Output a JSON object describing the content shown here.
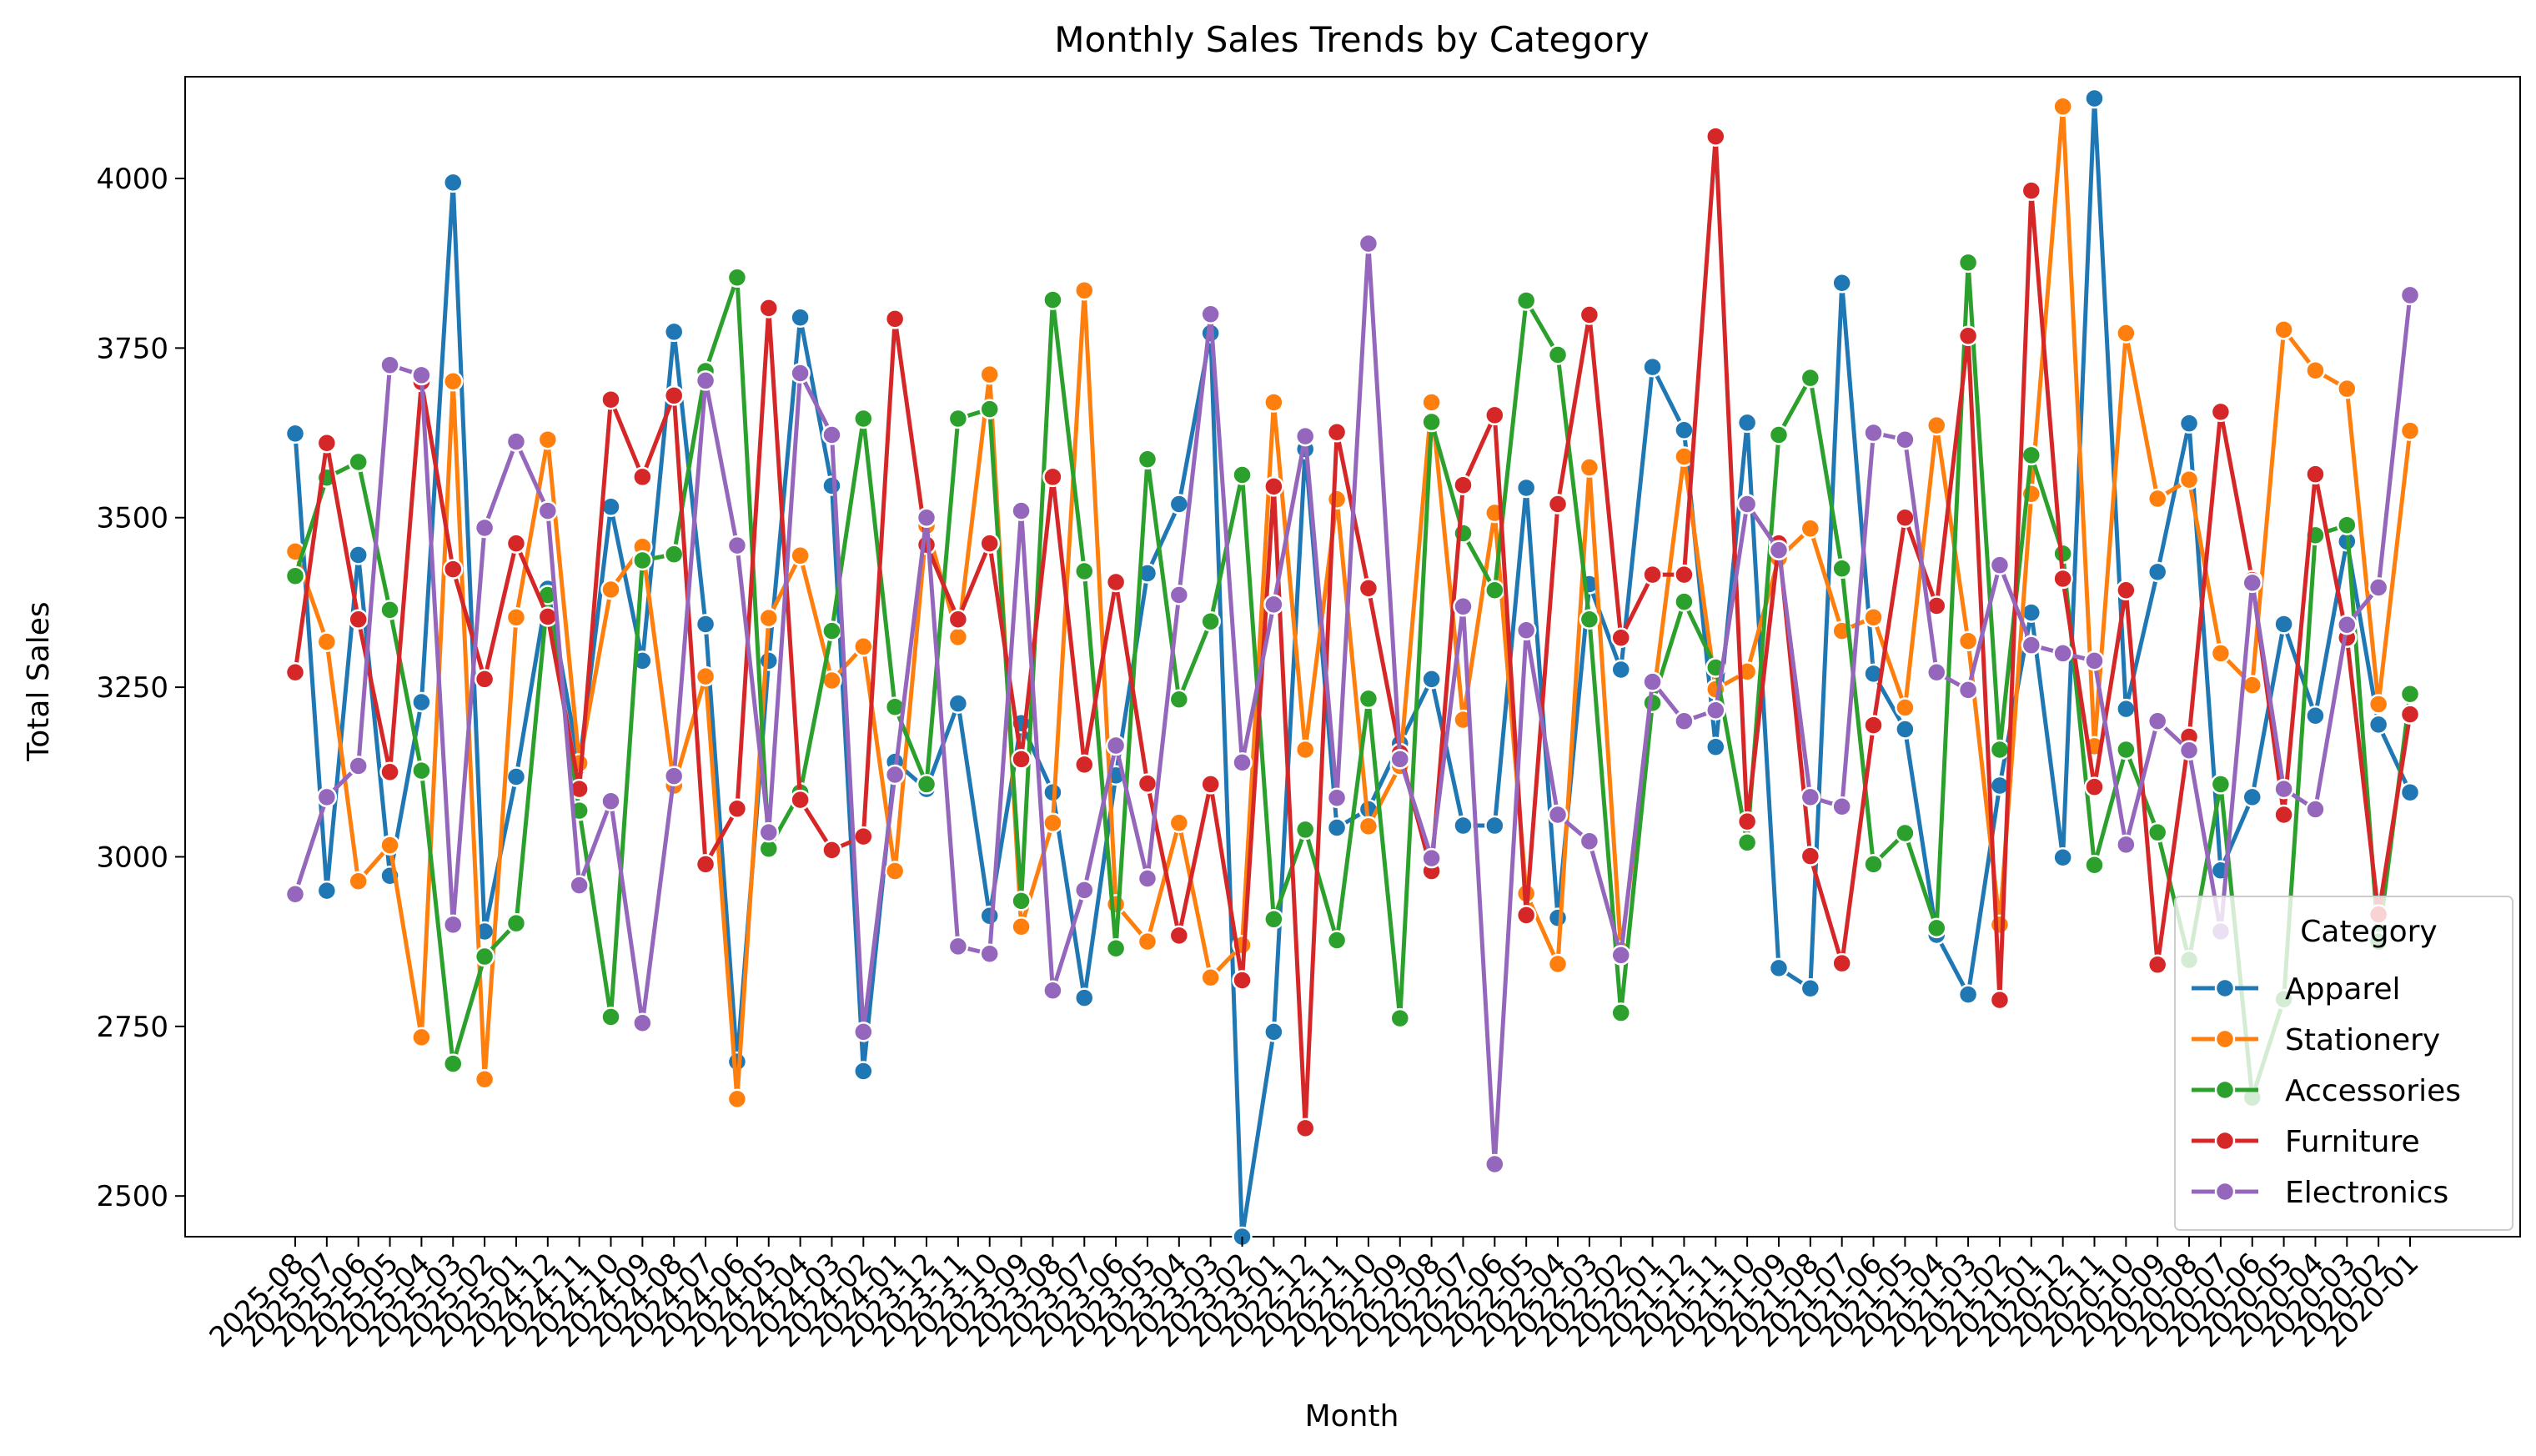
{
  "chart_data": {
    "type": "line",
    "title": "Monthly Sales Trends by Category",
    "xlabel": "Month",
    "ylabel": "Total Sales",
    "ylim": [
      2440,
      4150
    ],
    "yticks": [
      2500,
      2750,
      3000,
      3250,
      3500,
      3750,
      4000
    ],
    "grid": false,
    "legend": {
      "title": "Category",
      "position": "lower-right"
    },
    "categories": [
      "2025-08",
      "2025-07",
      "2025-06",
      "2025-05",
      "2025-04",
      "2025-03",
      "2025-02",
      "2025-01",
      "2024-12",
      "2024-11",
      "2024-10",
      "2024-09",
      "2024-08",
      "2024-07",
      "2024-06",
      "2024-05",
      "2024-04",
      "2024-03",
      "2024-02",
      "2024-01",
      "2023-12",
      "2023-11",
      "2023-10",
      "2023-09",
      "2023-08",
      "2023-07",
      "2023-06",
      "2023-05",
      "2023-04",
      "2023-03",
      "2023-02",
      "2023-01",
      "2022-12",
      "2022-11",
      "2022-10",
      "2022-09",
      "2022-08",
      "2022-07",
      "2022-06",
      "2022-05",
      "2022-04",
      "2022-03",
      "2022-02",
      "2022-01",
      "2021-12",
      "2021-11",
      "2021-10",
      "2021-09",
      "2021-08",
      "2021-07",
      "2021-06",
      "2021-05",
      "2021-04",
      "2021-03",
      "2021-02",
      "2021-01",
      "2020-12",
      "2020-11",
      "2020-10",
      "2020-09",
      "2020-08",
      "2020-07",
      "2020-06",
      "2020-05",
      "2020-04",
      "2020-03",
      "2020-02",
      "2020-01"
    ],
    "series": [
      {
        "name": "Apparel",
        "color": "#1f77b4",
        "values": [
          3624,
          2950,
          3445,
          2972,
          3228,
          3994,
          2890,
          3118,
          3395,
          3134,
          3516,
          3289,
          3774,
          3343,
          2698,
          3289,
          3795,
          3547,
          2684,
          3140,
          3100,
          3226,
          2913,
          3197,
          3095,
          2792,
          3120,
          3418,
          3520,
          3772,
          2440,
          2742,
          3601,
          3043,
          3070,
          3167,
          3262,
          3046,
          3046,
          3544,
          2910,
          3402,
          3276,
          3722,
          3629,
          3162,
          3640,
          2836,
          2806,
          3846,
          3270,
          3188,
          2885,
          2797,
          3105,
          3360,
          2999,
          4118,
          3218,
          3420,
          3639,
          2980,
          3088,
          3343,
          3208,
          3465,
          3195,
          3095
        ]
      },
      {
        "name": "Stationery",
        "color": "#ff7f0e",
        "values": [
          3450,
          3317,
          2964,
          3017,
          2734,
          3701,
          2672,
          3353,
          3615,
          3138,
          3394,
          3457,
          3105,
          3266,
          2643,
          3352,
          3444,
          3260,
          3310,
          2979,
          3488,
          3324,
          3711,
          2897,
          3050,
          3835,
          2930,
          2875,
          3050,
          2822,
          2870,
          3670,
          3158,
          3527,
          3045,
          3134,
          3670,
          3202,
          3507,
          2946,
          2842,
          3574,
          2862,
          3225,
          3590,
          3247,
          3273,
          3440,
          3484,
          3333,
          3353,
          3220,
          3636,
          3318,
          2900,
          3535,
          4106,
          3163,
          3772,
          3528,
          3556,
          3300,
          3253,
          3777,
          3717,
          3690,
          3225,
          3628
        ]
      },
      {
        "name": "Accessories",
        "color": "#2ca02c",
        "values": [
          3414,
          3559,
          3582,
          3364,
          3127,
          2695,
          2853,
          2902,
          3386,
          3068,
          2764,
          3437,
          3446,
          3716,
          3854,
          3012,
          3095,
          3333,
          3646,
          3221,
          3107,
          3646,
          3660,
          2935,
          3821,
          3421,
          2865,
          3586,
          3232,
          3347,
          3563,
          2908,
          3040,
          2877,
          3233,
          2762,
          3641,
          3477,
          3393,
          3820,
          3740,
          3350,
          2770,
          3227,
          3376,
          3279,
          3021,
          3622,
          3706,
          3425,
          2989,
          3035,
          2895,
          3876,
          3158,
          3592,
          3447,
          2988,
          3158,
          3036,
          2848,
          3107,
          2645,
          2790,
          3474,
          3489,
          2875,
          3240
        ]
      },
      {
        "name": "Furniture",
        "color": "#d62728",
        "values": [
          3272,
          3610,
          3350,
          3125,
          3700,
          3424,
          3262,
          3462,
          3354,
          3100,
          3674,
          3560,
          3680,
          2989,
          3071,
          3809,
          3084,
          3010,
          3030,
          3793,
          3460,
          3350,
          3462,
          3144,
          3560,
          3136,
          3405,
          3108,
          2884,
          3107,
          2818,
          3546,
          2600,
          3626,
          3396,
          3153,
          2979,
          3548,
          3651,
          2914,
          3520,
          3799,
          3323,
          3416,
          3416,
          4062,
          3052,
          3462,
          3001,
          2843,
          3194,
          3500,
          3370,
          3768,
          2789,
          3982,
          3410,
          3103,
          3393,
          2841,
          3177,
          3656,
          3408,
          3062,
          3564,
          3323,
          2915,
          3210
        ]
      },
      {
        "name": "Electronics",
        "color": "#9467bd",
        "values": [
          2945,
          3088,
          3134,
          3725,
          3710,
          2900,
          3485,
          3612,
          3510,
          2958,
          3082,
          2755,
          3119,
          3702,
          3459,
          3036,
          3713,
          3622,
          2742,
          3121,
          3500,
          2868,
          2857,
          3510,
          2803,
          2951,
          3164,
          2968,
          3386,
          3800,
          3139,
          3372,
          3620,
          3087,
          3904,
          3144,
          2998,
          3369,
          2547,
          3334,
          3062,
          3023,
          2855,
          3258,
          3200,
          3216,
          3520,
          3452,
          3088,
          3074,
          3625,
          3615,
          3272,
          3246,
          3430,
          3312,
          3300,
          3289,
          3018,
          3200,
          3157,
          2890,
          3404,
          3100,
          3070,
          3342,
          3397,
          3828
        ]
      }
    ]
  }
}
